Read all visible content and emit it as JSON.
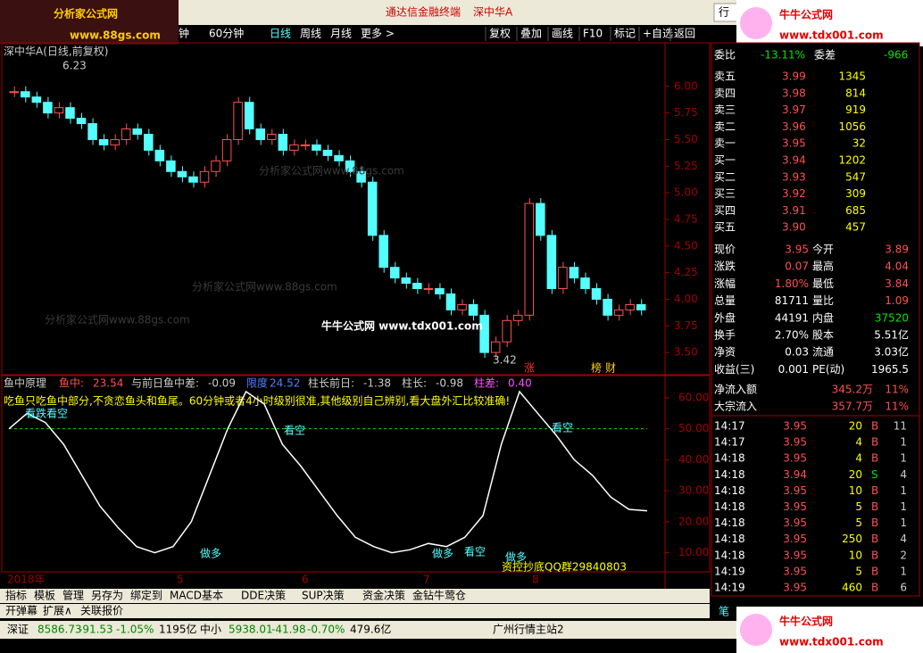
{
  "title_bar": {
    "app": "通达信金融终端",
    "stock": "深中华A",
    "menu_right": "行"
  },
  "logos": {
    "left_name": "分析家公式网",
    "left_url": "www.88gs.com",
    "right_name": "牛牛公式网",
    "right_url": "www.tdx001.com"
  },
  "toolbar": {
    "periods": [
      "钟",
      "60分钟",
      "日线",
      "周线",
      "月线",
      "更多 >"
    ],
    "buttons": [
      "复权",
      "叠加",
      "画线",
      "F10",
      "标记",
      "+自选",
      "返回"
    ]
  },
  "price_chart": {
    "label": "深中华A(日线,前复权)",
    "high_label": "6.23",
    "low_label": "3.42",
    "ylim": [
      3.3,
      6.3
    ],
    "yticks": [
      {
        "value": 6,
        "label": "6.00"
      },
      {
        "value": 5.75,
        "label": "5.75"
      },
      {
        "value": 5.5,
        "label": "5.50"
      },
      {
        "value": 5.25,
        "label": "5.25"
      },
      {
        "value": 5,
        "label": "5.00"
      },
      {
        "value": 4.75,
        "label": "4.75"
      },
      {
        "value": 4.5,
        "label": "4.50"
      },
      {
        "value": 4.25,
        "label": "4.25"
      },
      {
        "value": 4,
        "label": "4.00"
      },
      {
        "value": 3.75,
        "label": "3.75"
      },
      {
        "value": 3.5,
        "label": "3.50"
      }
    ],
    "closes": [
      5.95,
      5.9,
      5.85,
      5.75,
      5.8,
      5.7,
      5.65,
      5.5,
      5.45,
      5.5,
      5.6,
      5.55,
      5.4,
      5.3,
      5.2,
      5.15,
      5.1,
      5.2,
      5.3,
      5.5,
      5.85,
      5.6,
      5.5,
      5.55,
      5.4,
      5.45,
      5.45,
      5.4,
      5.35,
      5.3,
      5.2,
      5.1,
      4.6,
      4.3,
      4.2,
      4.15,
      4.1,
      4.1,
      4.05,
      3.9,
      3.95,
      3.85,
      3.5,
      3.6,
      3.8,
      3.85,
      4.9,
      4.6,
      4.1,
      4.3,
      4.2,
      4.1,
      4,
      3.85,
      3.9,
      3.95,
      3.9
    ],
    "markers": [
      "涨",
      "榜",
      "财"
    ],
    "watermarks": [
      "分析家公式网www.88gs.com",
      "分析家公式网www.88gs.com",
      "分析家公式网www.88gs.com"
    ],
    "overlay": "牛牛公式网 www.tdx001.com"
  },
  "indicator": {
    "name": "鱼中原理",
    "fields": [
      {
        "label": "鱼中:",
        "value": "23.54"
      },
      {
        "label": "与前日鱼中差:",
        "value": "-0.09"
      },
      {
        "label": "限度",
        "value": "24.52"
      },
      {
        "label": "柱长前日:",
        "value": "-1.38"
      },
      {
        "label": "柱长:",
        "value": "-0.98"
      },
      {
        "label": "柱差:",
        "value": "0.40"
      }
    ],
    "note": "吃鱼只吃鱼中部分,不贪恋鱼头和鱼尾。60分钟或者4小时级别很准,其他级别自己辨别,看大盘外汇比较准确!",
    "ylim": [
      5,
      62
    ],
    "yticks": [
      {
        "value": 60,
        "label": "60.00"
      },
      {
        "value": 50,
        "label": "50.00"
      },
      {
        "value": 40,
        "label": "40.00"
      },
      {
        "value": 30,
        "label": "30.00"
      },
      {
        "value": 20,
        "label": "20.00"
      },
      {
        "value": 10,
        "label": "10.00"
      }
    ],
    "threshold": 50,
    "values": [
      50,
      55,
      52,
      45,
      35,
      25,
      18,
      12,
      10,
      12,
      20,
      35,
      50,
      62,
      58,
      45,
      38,
      30,
      22,
      15,
      12,
      10,
      11,
      13,
      12,
      15,
      22,
      45,
      62,
      55,
      48,
      40,
      35,
      28,
      24,
      23.54
    ],
    "signals": [
      "看跌看空",
      "看空",
      "做多",
      "做多",
      "看空",
      "做多",
      "看空"
    ],
    "qq": "资控抄底QQ群29840803"
  },
  "date_axis": [
    "2018年",
    "5",
    "6",
    "7",
    "8"
  ],
  "tabs": [
    "指标",
    "模板",
    "管理",
    "另存为",
    "绑定到",
    "MACD基本",
    "DDE决策",
    "SUP决策",
    "资金决策",
    "金钻牛莺仓"
  ],
  "tabs2": [
    "开弹幕",
    "扩展∧",
    "关联报价"
  ],
  "status": [
    "深证",
    "8586.73",
    "-91.53",
    "-1.05%",
    "1195亿",
    "中小",
    "5938.01",
    "-41.98",
    "-0.70%",
    "479.6亿",
    "广州行情主站2"
  ],
  "right_panel": {
    "weibi": [
      "委比",
      "-13.11%",
      "委差",
      "-966"
    ],
    "book": [
      [
        "卖五",
        "3.99",
        "1345"
      ],
      [
        "卖四",
        "3.98",
        "814"
      ],
      [
        "卖三",
        "3.97",
        "919"
      ],
      [
        "卖二",
        "3.96",
        "1056"
      ],
      [
        "卖一",
        "3.95",
        "32"
      ],
      [
        "买一",
        "3.94",
        "1202"
      ],
      [
        "买二",
        "3.93",
        "547"
      ],
      [
        "买三",
        "3.92",
        "309"
      ],
      [
        "买四",
        "3.91",
        "685"
      ],
      [
        "买五",
        "3.90",
        "457"
      ]
    ],
    "quote": [
      [
        "现价",
        "3.95",
        "今开",
        "3.89"
      ],
      [
        "涨跌",
        "0.07",
        "最高",
        "4.04"
      ],
      [
        "涨幅",
        "1.80%",
        "最低",
        "3.84"
      ],
      [
        "总量",
        "81711",
        "量比",
        "1.09"
      ],
      [
        "外盘",
        "44191",
        "内盘",
        "37520"
      ],
      [
        "换手",
        "2.70%",
        "股本",
        "5.51亿"
      ],
      [
        "净资",
        "0.03",
        "流通",
        "3.03亿"
      ],
      [
        "收益(三)",
        "0.001",
        "PE(动)",
        "1965.5"
      ]
    ],
    "flow": [
      [
        "净流入额",
        "345.2万",
        "11%"
      ],
      [
        "大宗流入",
        "357.7万",
        "11%"
      ]
    ],
    "trades": [
      [
        "14:17",
        "3.95",
        "20",
        "B",
        "11"
      ],
      [
        "14:17",
        "3.95",
        "4",
        "B",
        "1"
      ],
      [
        "14:18",
        "3.95",
        "4",
        "B",
        "1"
      ],
      [
        "14:18",
        "3.94",
        "20",
        "S",
        "4"
      ],
      [
        "14:18",
        "3.95",
        "10",
        "B",
        "1"
      ],
      [
        "14:18",
        "3.95",
        "5",
        "B",
        "1"
      ],
      [
        "14:18",
        "3.95",
        "5",
        "B",
        "1"
      ],
      [
        "14:18",
        "3.95",
        "250",
        "B",
        "4"
      ],
      [
        "14:18",
        "3.95",
        "10",
        "B",
        "2"
      ],
      [
        "14:19",
        "3.95",
        "5",
        "B",
        "1"
      ],
      [
        "14:19",
        "3.95",
        "460",
        "B",
        "6"
      ]
    ],
    "footer": "笔"
  }
}
